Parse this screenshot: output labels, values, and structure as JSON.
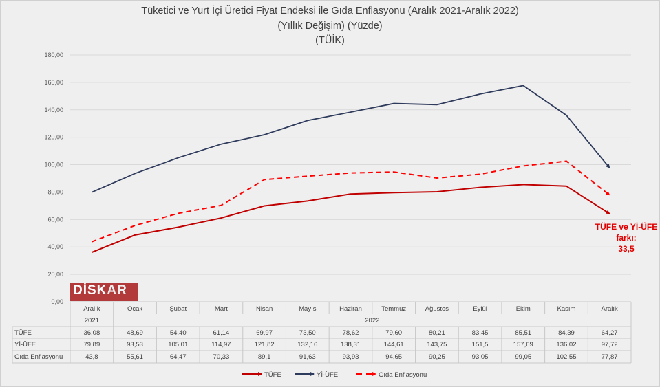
{
  "chart_data": {
    "type": "line",
    "title": "Tüketici ve Yurt İçi Üretici Fiyat Endeksi ile Gıda Enflasyonu (Aralık 2021-Aralık 2022)",
    "subtitle": "(Yıllık Değişim) (Yüzde)",
    "source": "(TÜİK)",
    "categories": [
      "Aralık",
      "Ocak",
      "Şubat",
      "Mart",
      "Nisan",
      "Mayıs",
      "Haziran",
      "Temmuz",
      "Ağustos",
      "Eylül",
      "Ekim",
      "Kasım",
      "Aralık"
    ],
    "year_groups": [
      {
        "label": "2021",
        "span": [
          0,
          0
        ]
      },
      {
        "label": "2022",
        "span": [
          1,
          12
        ]
      }
    ],
    "ylim": [
      0,
      180
    ],
    "yticks": [
      "0,00",
      "20,00",
      "40,00",
      "60,00",
      "80,00",
      "100,00",
      "120,00",
      "140,00",
      "160,00",
      "180,00"
    ],
    "grid": true,
    "legend_placement": "bottom",
    "series": [
      {
        "name": "TÜFE",
        "color": "#c00000",
        "dash": false,
        "labels": [
          "36,08",
          "48,69",
          "54,40",
          "61,14",
          "69,97",
          "73,50",
          "78,62",
          "79,60",
          "80,21",
          "83,45",
          "85,51",
          "84,39",
          "64,27"
        ],
        "values": [
          36.08,
          48.69,
          54.4,
          61.14,
          69.97,
          73.5,
          78.62,
          79.6,
          80.21,
          83.45,
          85.51,
          84.39,
          64.27
        ]
      },
      {
        "name": "Yİ-ÜFE",
        "color": "#2f3b5c",
        "dash": false,
        "labels": [
          "79,89",
          "93,53",
          "105,01",
          "114,97",
          "121,82",
          "132,16",
          "138,31",
          "144,61",
          "143,75",
          "151,5",
          "157,69",
          "136,02",
          "97,72"
        ],
        "values": [
          79.89,
          93.53,
          105.01,
          114.97,
          121.82,
          132.16,
          138.31,
          144.61,
          143.75,
          151.5,
          157.69,
          136.02,
          97.72
        ]
      },
      {
        "name": "Gıda Enflasyonu",
        "color": "#ff0000",
        "dash": true,
        "labels": [
          "43,8",
          "55,61",
          "64,47",
          "70,33",
          "89,1",
          "91,63",
          "93,93",
          "94,65",
          "90,25",
          "93,05",
          "99,05",
          "102,55",
          "77,87"
        ],
        "values": [
          43.8,
          55.61,
          64.47,
          70.33,
          89.1,
          91.63,
          93.93,
          94.65,
          90.25,
          93.05,
          99.05,
          102.55,
          77.87
        ]
      }
    ],
    "annotation": [
      "TÜFE ve Yİ-ÜFE",
      "farkı:",
      "33,5"
    ]
  },
  "logo_text": "DİSKAR"
}
